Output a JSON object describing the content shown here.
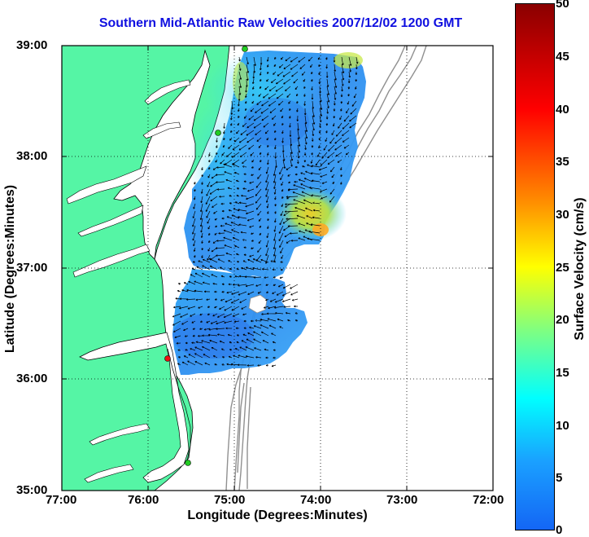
{
  "title": "Southern Mid-Atlantic Raw Velocities 2007/12/02 1200 GMT",
  "xlabel": "Longitude (Degrees:Minutes)",
  "ylabel": "Latitude (Degrees:Minutes)",
  "x_ticks": [
    "77:00",
    "76:00",
    "75:00",
    "74:00",
    "73:00",
    "72:00"
  ],
  "y_ticks": [
    "39:00",
    "38:00",
    "37:00",
    "36:00",
    "35:00"
  ],
  "colorbar": {
    "label": "Surface Velocity (cm/s)",
    "ticks": [
      "50",
      "45",
      "40",
      "35",
      "30",
      "25",
      "20",
      "15",
      "10",
      "5",
      "0"
    ],
    "colormap": "jet",
    "range": [
      0,
      50
    ]
  },
  "colors": {
    "land": "#55f5a5",
    "water": "#ffffff",
    "title": "#1010e0",
    "bathymetry": "#909090",
    "station_green": "#22cc22",
    "station_red": "#ee1111",
    "arrows": "#000000"
  },
  "chart_data": {
    "type": "map",
    "x_range_deg_west": [
      77,
      72
    ],
    "y_range_deg_north": [
      35,
      39
    ],
    "grid": true,
    "stations": [
      {
        "lon": 74.85,
        "lat": 38.97,
        "status": "green"
      },
      {
        "lon": 75.1,
        "lat": 38.22,
        "status": "green"
      },
      {
        "lon": 75.73,
        "lat": 36.18,
        "status": "red"
      },
      {
        "lon": 75.47,
        "lat": 35.25,
        "status": "green"
      }
    ],
    "velocity_field_cm_s": {
      "min": 0,
      "max": 50,
      "max_region": "near 74.0W 37.3N (~28)"
    }
  }
}
